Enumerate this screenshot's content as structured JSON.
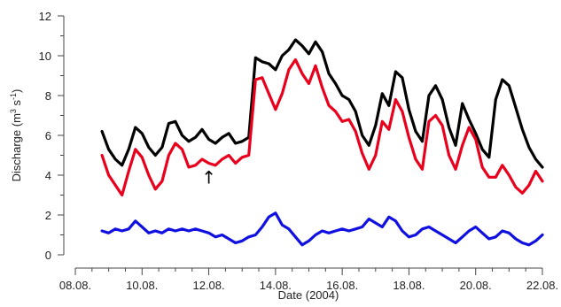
{
  "chart_data": {
    "type": "line",
    "title": "",
    "xlabel": "Date (2004)",
    "ylabel": "Discharge (m³ s⁻¹)",
    "ylabel_parts": {
      "prefix": "Discharge (m",
      "sup1": "3",
      "mid": " s",
      "sup2": "-1",
      "suffix": ")"
    },
    "xlim": [
      0,
      14
    ],
    "ylim": [
      0,
      12
    ],
    "x_tick_values": [
      0,
      2,
      4,
      6,
      8,
      10,
      12,
      14
    ],
    "x_tick_labels": [
      "08.08.",
      "10.08.",
      "12.08.",
      "14.08.",
      "16.08.",
      "18.08.",
      "20.08.",
      "22.08."
    ],
    "y_ticks": [
      0,
      2,
      4,
      6,
      8,
      10,
      12
    ],
    "grid": false,
    "legend": "none",
    "annotation": {
      "text": "↑",
      "x": 4.0,
      "y": 3.75
    },
    "series": [
      {
        "color": "#000000",
        "x": [
          0.8,
          1.0,
          1.2,
          1.4,
          1.6,
          1.8,
          2.0,
          2.2,
          2.4,
          2.6,
          2.8,
          3.0,
          3.2,
          3.4,
          3.6,
          3.8,
          4.0,
          4.2,
          4.4,
          4.6,
          4.8,
          5.0,
          5.2,
          5.4,
          5.6,
          5.8,
          6.0,
          6.2,
          6.4,
          6.6,
          6.8,
          7.0,
          7.2,
          7.4,
          7.6,
          7.8,
          8.0,
          8.2,
          8.4,
          8.6,
          8.8,
          9.0,
          9.2,
          9.4,
          9.6,
          9.8,
          10.0,
          10.2,
          10.4,
          10.6,
          10.8,
          11.0,
          11.2,
          11.4,
          11.6,
          11.8,
          12.0,
          12.2,
          12.4,
          12.6,
          12.8,
          13.0,
          13.2,
          13.4,
          13.6,
          13.8,
          14.0
        ],
        "y": [
          6.2,
          5.3,
          4.8,
          4.5,
          5.3,
          6.4,
          6.1,
          5.4,
          5.0,
          5.4,
          6.6,
          6.7,
          6.0,
          5.7,
          5.9,
          6.3,
          5.8,
          5.6,
          5.9,
          6.1,
          5.6,
          5.7,
          5.9,
          9.9,
          9.7,
          9.6,
          9.3,
          10.0,
          10.3,
          10.8,
          10.5,
          10.1,
          10.7,
          10.2,
          9.1,
          8.6,
          8.0,
          7.8,
          7.2,
          6.0,
          5.5,
          6.5,
          8.1,
          7.5,
          9.2,
          8.9,
          7.3,
          6.2,
          5.7,
          8.0,
          8.5,
          7.8,
          6.4,
          5.5,
          7.6,
          6.8,
          6.1,
          5.3,
          4.9,
          7.8,
          8.8,
          8.5,
          7.4,
          6.3,
          5.4,
          4.8,
          4.4
        ]
      },
      {
        "color": "#e8001c",
        "x": [
          0.8,
          1.0,
          1.2,
          1.4,
          1.6,
          1.8,
          2.0,
          2.2,
          2.4,
          2.6,
          2.8,
          3.0,
          3.2,
          3.4,
          3.6,
          3.8,
          4.0,
          4.2,
          4.4,
          4.6,
          4.8,
          5.0,
          5.2,
          5.4,
          5.6,
          5.8,
          6.0,
          6.2,
          6.4,
          6.6,
          6.8,
          7.0,
          7.2,
          7.4,
          7.6,
          7.8,
          8.0,
          8.2,
          8.4,
          8.6,
          8.8,
          9.0,
          9.2,
          9.4,
          9.6,
          9.8,
          10.0,
          10.2,
          10.4,
          10.6,
          10.8,
          11.0,
          11.2,
          11.4,
          11.6,
          11.8,
          12.0,
          12.2,
          12.4,
          12.6,
          12.8,
          13.0,
          13.2,
          13.4,
          13.6,
          13.8,
          14.0
        ],
        "y": [
          5.0,
          4.0,
          3.5,
          3.0,
          4.2,
          5.3,
          4.9,
          4.0,
          3.3,
          3.7,
          5.0,
          5.6,
          5.3,
          4.4,
          4.5,
          4.8,
          4.6,
          4.5,
          4.8,
          5.0,
          4.6,
          4.9,
          5.0,
          8.8,
          8.9,
          8.1,
          7.3,
          8.1,
          9.3,
          9.8,
          9.1,
          8.6,
          9.5,
          8.4,
          7.5,
          7.2,
          6.7,
          6.8,
          6.2,
          5.1,
          4.3,
          5.0,
          6.7,
          6.3,
          7.8,
          7.2,
          5.9,
          4.8,
          4.3,
          6.7,
          7.0,
          6.5,
          5.0,
          4.3,
          5.5,
          6.4,
          5.8,
          4.4,
          3.9,
          3.9,
          4.5,
          4.0,
          3.4,
          3.1,
          3.5,
          4.2,
          3.7
        ]
      },
      {
        "color": "#1010e0",
        "x": [
          0.8,
          1.0,
          1.2,
          1.4,
          1.6,
          1.8,
          2.0,
          2.2,
          2.4,
          2.6,
          2.8,
          3.0,
          3.2,
          3.4,
          3.6,
          3.8,
          4.0,
          4.2,
          4.4,
          4.6,
          4.8,
          5.0,
          5.2,
          5.4,
          5.6,
          5.8,
          6.0,
          6.2,
          6.4,
          6.6,
          6.8,
          7.0,
          7.2,
          7.4,
          7.6,
          7.8,
          8.0,
          8.2,
          8.4,
          8.6,
          8.8,
          9.0,
          9.2,
          9.4,
          9.6,
          9.8,
          10.0,
          10.2,
          10.4,
          10.6,
          10.8,
          11.0,
          11.2,
          11.4,
          11.6,
          11.8,
          12.0,
          12.2,
          12.4,
          12.6,
          12.8,
          13.0,
          13.2,
          13.4,
          13.6,
          13.8,
          14.0
        ],
        "y": [
          1.2,
          1.1,
          1.3,
          1.2,
          1.3,
          1.7,
          1.4,
          1.1,
          1.2,
          1.1,
          1.3,
          1.2,
          1.3,
          1.2,
          1.3,
          1.2,
          1.1,
          0.9,
          1.0,
          0.8,
          0.6,
          0.7,
          0.9,
          1.0,
          1.4,
          1.9,
          2.1,
          1.5,
          1.3,
          0.9,
          0.5,
          0.7,
          1.0,
          1.2,
          1.1,
          1.2,
          1.3,
          1.2,
          1.3,
          1.4,
          1.8,
          1.6,
          1.4,
          1.9,
          1.7,
          1.2,
          0.9,
          1.0,
          1.3,
          1.4,
          1.2,
          1.0,
          0.8,
          0.6,
          0.9,
          1.2,
          1.4,
          1.1,
          0.8,
          0.9,
          1.2,
          1.1,
          0.8,
          0.6,
          0.5,
          0.7,
          1.0
        ]
      }
    ]
  }
}
